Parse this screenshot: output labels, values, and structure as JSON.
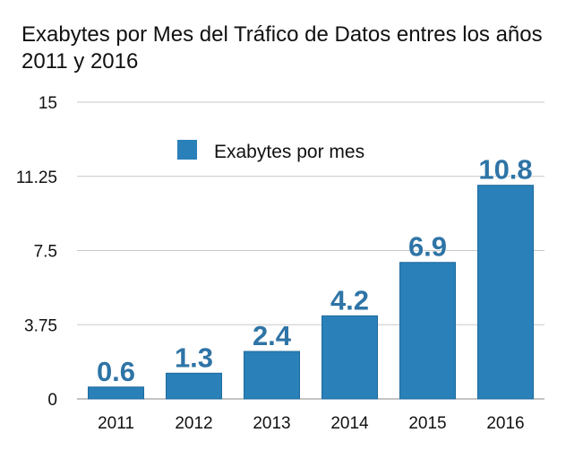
{
  "chart_data": {
    "type": "bar",
    "title": "Exabytes por Mes del Tráfico de Datos entres los años 2011 y 2016",
    "categories": [
      "2011",
      "2012",
      "2013",
      "2014",
      "2015",
      "2016"
    ],
    "series": [
      {
        "name": "Exabytes por mes",
        "values": [
          0.6,
          1.3,
          2.4,
          4.2,
          6.9,
          10.8
        ]
      }
    ],
    "data_labels": [
      "0.6",
      "1.3",
      "2.4",
      "4.2",
      "6.9",
      "10.8"
    ],
    "y_ticks": [
      "0",
      "3.75",
      "7.5",
      "11.25",
      "15"
    ],
    "ylim": [
      0,
      15
    ],
    "xlabel": "",
    "ylabel": "",
    "grid": true,
    "legend_position": "top-center",
    "colors": {
      "bar": "#2a80b9",
      "bar_edge": "#1f6a9c",
      "data_label": "#2e74a6",
      "grid": "#c8c8c8",
      "axis": "#888888"
    }
  }
}
